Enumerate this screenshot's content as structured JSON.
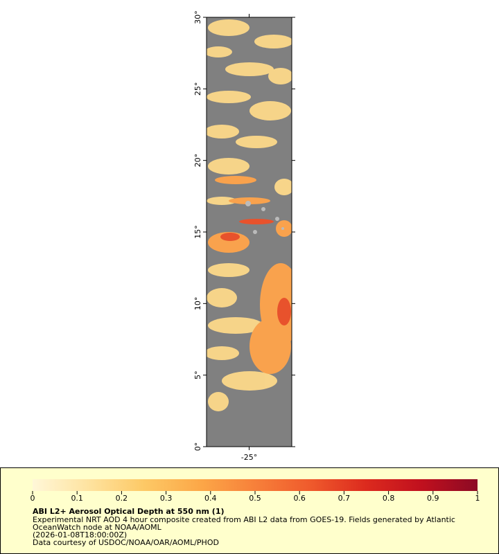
{
  "map": {
    "xlim": [
      -28,
      -22
    ],
    "ylim": [
      0,
      30
    ],
    "lat_ticks": [
      {
        "value": 0,
        "label": "0°"
      },
      {
        "value": 5,
        "label": "5°"
      },
      {
        "value": 10,
        "label": "10°"
      },
      {
        "value": 15,
        "label": "15°"
      },
      {
        "value": 20,
        "label": "20°"
      },
      {
        "value": 25,
        "label": "25°"
      },
      {
        "value": 30,
        "label": "30°"
      }
    ],
    "lon_ticks": [
      {
        "value": -25,
        "label": "-25°"
      }
    ]
  },
  "colorbar": {
    "range": [
      0,
      1
    ],
    "ticks": [
      0,
      0.1,
      0.2,
      0.3,
      0.4,
      0.5,
      0.6,
      0.7,
      0.8,
      0.9,
      1
    ],
    "colors": [
      "#fff7d8",
      "#fee3a0",
      "#fdc966",
      "#fca848",
      "#f7803a",
      "#ef5a2c",
      "#dc2a1e",
      "#c0101e",
      "#8c0a24"
    ]
  },
  "caption": {
    "title": "ABI L2+ Aerosol Optical Depth at 550 nm (1)",
    "lines": [
      "Experimental NRT AOD 4 hour composite created from ABI L2 data from GOES-19. Fields generated by Atlantic",
      "OceanWatch node at NOAA/AOML",
      "(2026-01-08T18:00:00Z)",
      "Data courtesy of USDOC/NOAA/OAR/AOML/PHOD"
    ]
  }
}
